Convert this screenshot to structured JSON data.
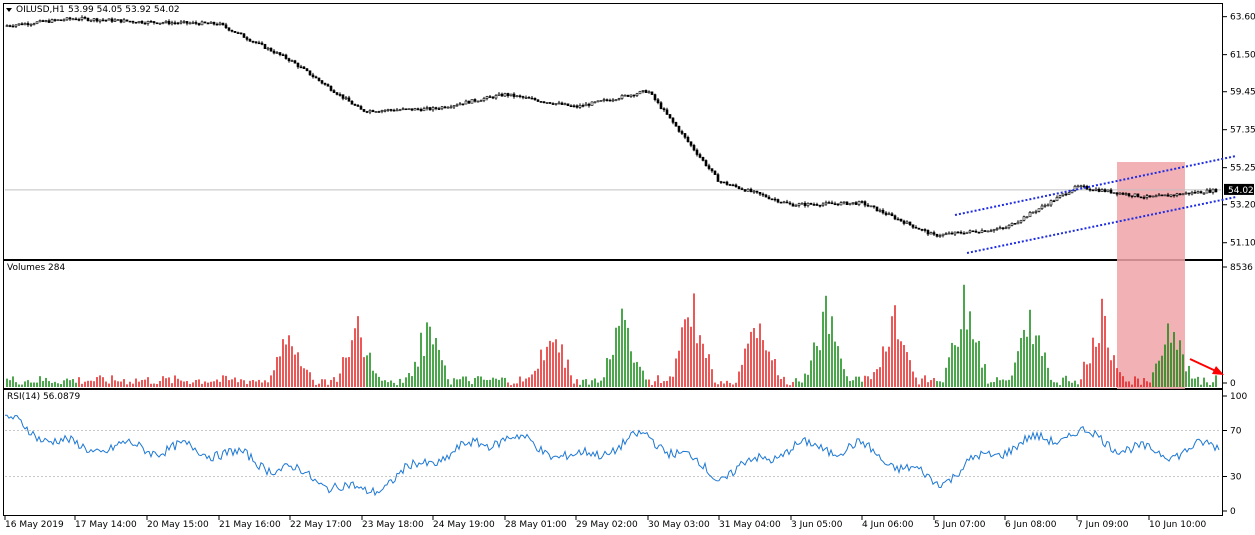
{
  "chart_data": [
    {
      "type": "candlestick",
      "pane": "price",
      "symbol": "OILUSD,H1",
      "ohlc": {
        "open": 53.99,
        "high": 54.05,
        "low": 53.92,
        "close": 54.02
      },
      "ohlc_text": "53.99 54.05 53.92 54.02",
      "current_price_label": "54.02",
      "y_ticks": [
        "63.60",
        "61.50",
        "59.45",
        "57.35",
        "55.25",
        "53.20",
        "51.10"
      ],
      "ylim": [
        50.2,
        64.3
      ],
      "approx_close_path": [
        {
          "x": "16 May 2019",
          "y": 63.1
        },
        {
          "x": "17 May 14:00",
          "y": 63.5
        },
        {
          "x": "20 May 15:00",
          "y": 63.3
        },
        {
          "x": "21 May 16:00",
          "y": 63.2
        },
        {
          "x": "22 May 17:00",
          "y": 61.2
        },
        {
          "x": "23 May 18:00",
          "y": 58.4
        },
        {
          "x": "24 May 19:00",
          "y": 58.5
        },
        {
          "x": "28 May 01:00",
          "y": 59.3
        },
        {
          "x": "29 May 02:00",
          "y": 58.6
        },
        {
          "x": "30 May 03:00",
          "y": 59.5
        },
        {
          "x": "31 May 04:00",
          "y": 54.5
        },
        {
          "x": "3 Jun 05:00",
          "y": 53.2
        },
        {
          "x": "4 Jun 06:00",
          "y": 53.3
        },
        {
          "x": "5 Jun 07:00",
          "y": 51.5
        },
        {
          "x": "6 Jun 08:00",
          "y": 51.9
        },
        {
          "x": "7 Jun 09:00",
          "y": 54.2
        },
        {
          "x": "10 Jun 10:00",
          "y": 53.6
        },
        {
          "x": "10 Jun 19:00",
          "y": 54.02
        }
      ],
      "annotations": [
        "ascending channel (blue dotted lines)",
        "red shaded zone",
        "red arrow"
      ],
      "colors": {
        "candles": "#000000",
        "channel": "#1f2de0",
        "zone": "#f0a3a8",
        "arrow": "#ff0000"
      }
    },
    {
      "type": "bar",
      "pane": "volumes",
      "title": "Volumes 284",
      "y_ticks": [
        "8536",
        "0"
      ],
      "ylim": [
        0,
        8536
      ],
      "last_value": 284,
      "colors": {
        "up": "#008000",
        "down": "#e01010"
      }
    },
    {
      "type": "line",
      "pane": "rsi",
      "title": "RSI(14) 56.0879",
      "y_ticks": [
        "100",
        "70",
        "30",
        "0"
      ],
      "ylim": [
        0,
        100
      ],
      "levels": [
        30,
        70
      ],
      "approx_values": [
        {
          "x": "16 May 2019",
          "y": 79
        },
        {
          "x": "17 May 14:00",
          "y": 55
        },
        {
          "x": "20 May 15:00",
          "y": 55
        },
        {
          "x": "21 May 16:00",
          "y": 52
        },
        {
          "x": "22 May 17:00",
          "y": 35
        },
        {
          "x": "23 May 18:00",
          "y": 15
        },
        {
          "x": "24 May 19:00",
          "y": 45
        },
        {
          "x": "28 May 01:00",
          "y": 65
        },
        {
          "x": "29 May 02:00",
          "y": 45
        },
        {
          "x": "30 May 03:00",
          "y": 65
        },
        {
          "x": "31 May 04:00",
          "y": 30
        },
        {
          "x": "3 Jun 05:00",
          "y": 55
        },
        {
          "x": "4 Jun 06:00",
          "y": 55
        },
        {
          "x": "5 Jun 07:00",
          "y": 25
        },
        {
          "x": "6 Jun 08:00",
          "y": 55
        },
        {
          "x": "7 Jun 09:00",
          "y": 68
        },
        {
          "x": "10 Jun 10:00",
          "y": 50
        },
        {
          "x": "10 Jun 19:00",
          "y": 56.0879
        }
      ],
      "color": "#1e78d2"
    }
  ],
  "x_axis": {
    "ticks": [
      "16 May 2019",
      "17 May 14:00",
      "20 May 15:00",
      "21 May 16:00",
      "22 May 17:00",
      "23 May 18:00",
      "24 May 19:00",
      "28 May 01:00",
      "29 May 02:00",
      "30 May 03:00",
      "31 May 04:00",
      "3 Jun 05:00",
      "4 Jun 06:00",
      "5 Jun 07:00",
      "6 Jun 08:00",
      "7 Jun 09:00",
      "10 Jun 10:00"
    ]
  }
}
